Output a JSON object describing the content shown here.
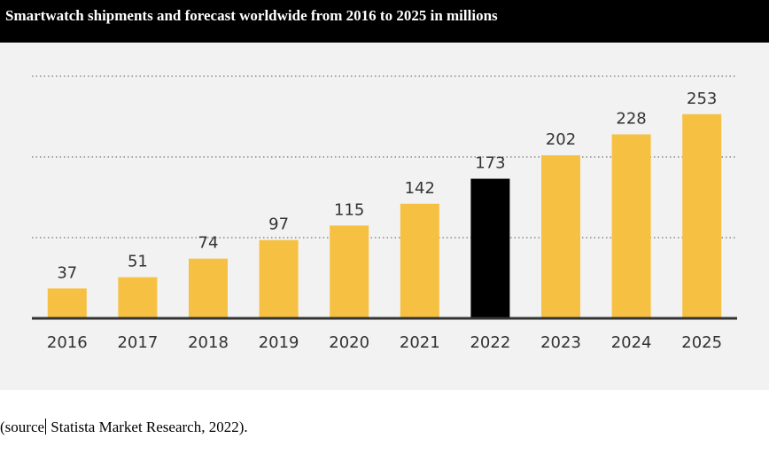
{
  "header": {
    "title": "Smartwatch shipments and forecast worldwide from 2016 to 2025 in millions"
  },
  "footer": {
    "source_open": "(source",
    "source_rest": " Statista Market Research, 2022)."
  },
  "chart_data": {
    "type": "bar",
    "title": "",
    "xlabel": "",
    "ylabel": "",
    "categories": [
      "2016",
      "2017",
      "2018",
      "2019",
      "2020",
      "2021",
      "2022",
      "2023",
      "2024",
      "2025"
    ],
    "values": [
      37,
      51,
      74,
      97,
      115,
      142,
      173,
      202,
      228,
      253
    ],
    "data_labels": [
      "37",
      "51",
      "74",
      "97",
      "115",
      "142",
      "173",
      "202",
      "228",
      "253"
    ],
    "ylim": [
      0,
      300
    ],
    "gridlines": [
      100,
      200,
      300
    ],
    "grid": true,
    "legend": "none",
    "colors": {
      "bar": "#f6c142",
      "highlight": "#000000",
      "highlight_category": "2022",
      "panel_background": "#f2f2f2",
      "baseline": "#333333",
      "grid": "#555555",
      "text": "#333333"
    }
  }
}
